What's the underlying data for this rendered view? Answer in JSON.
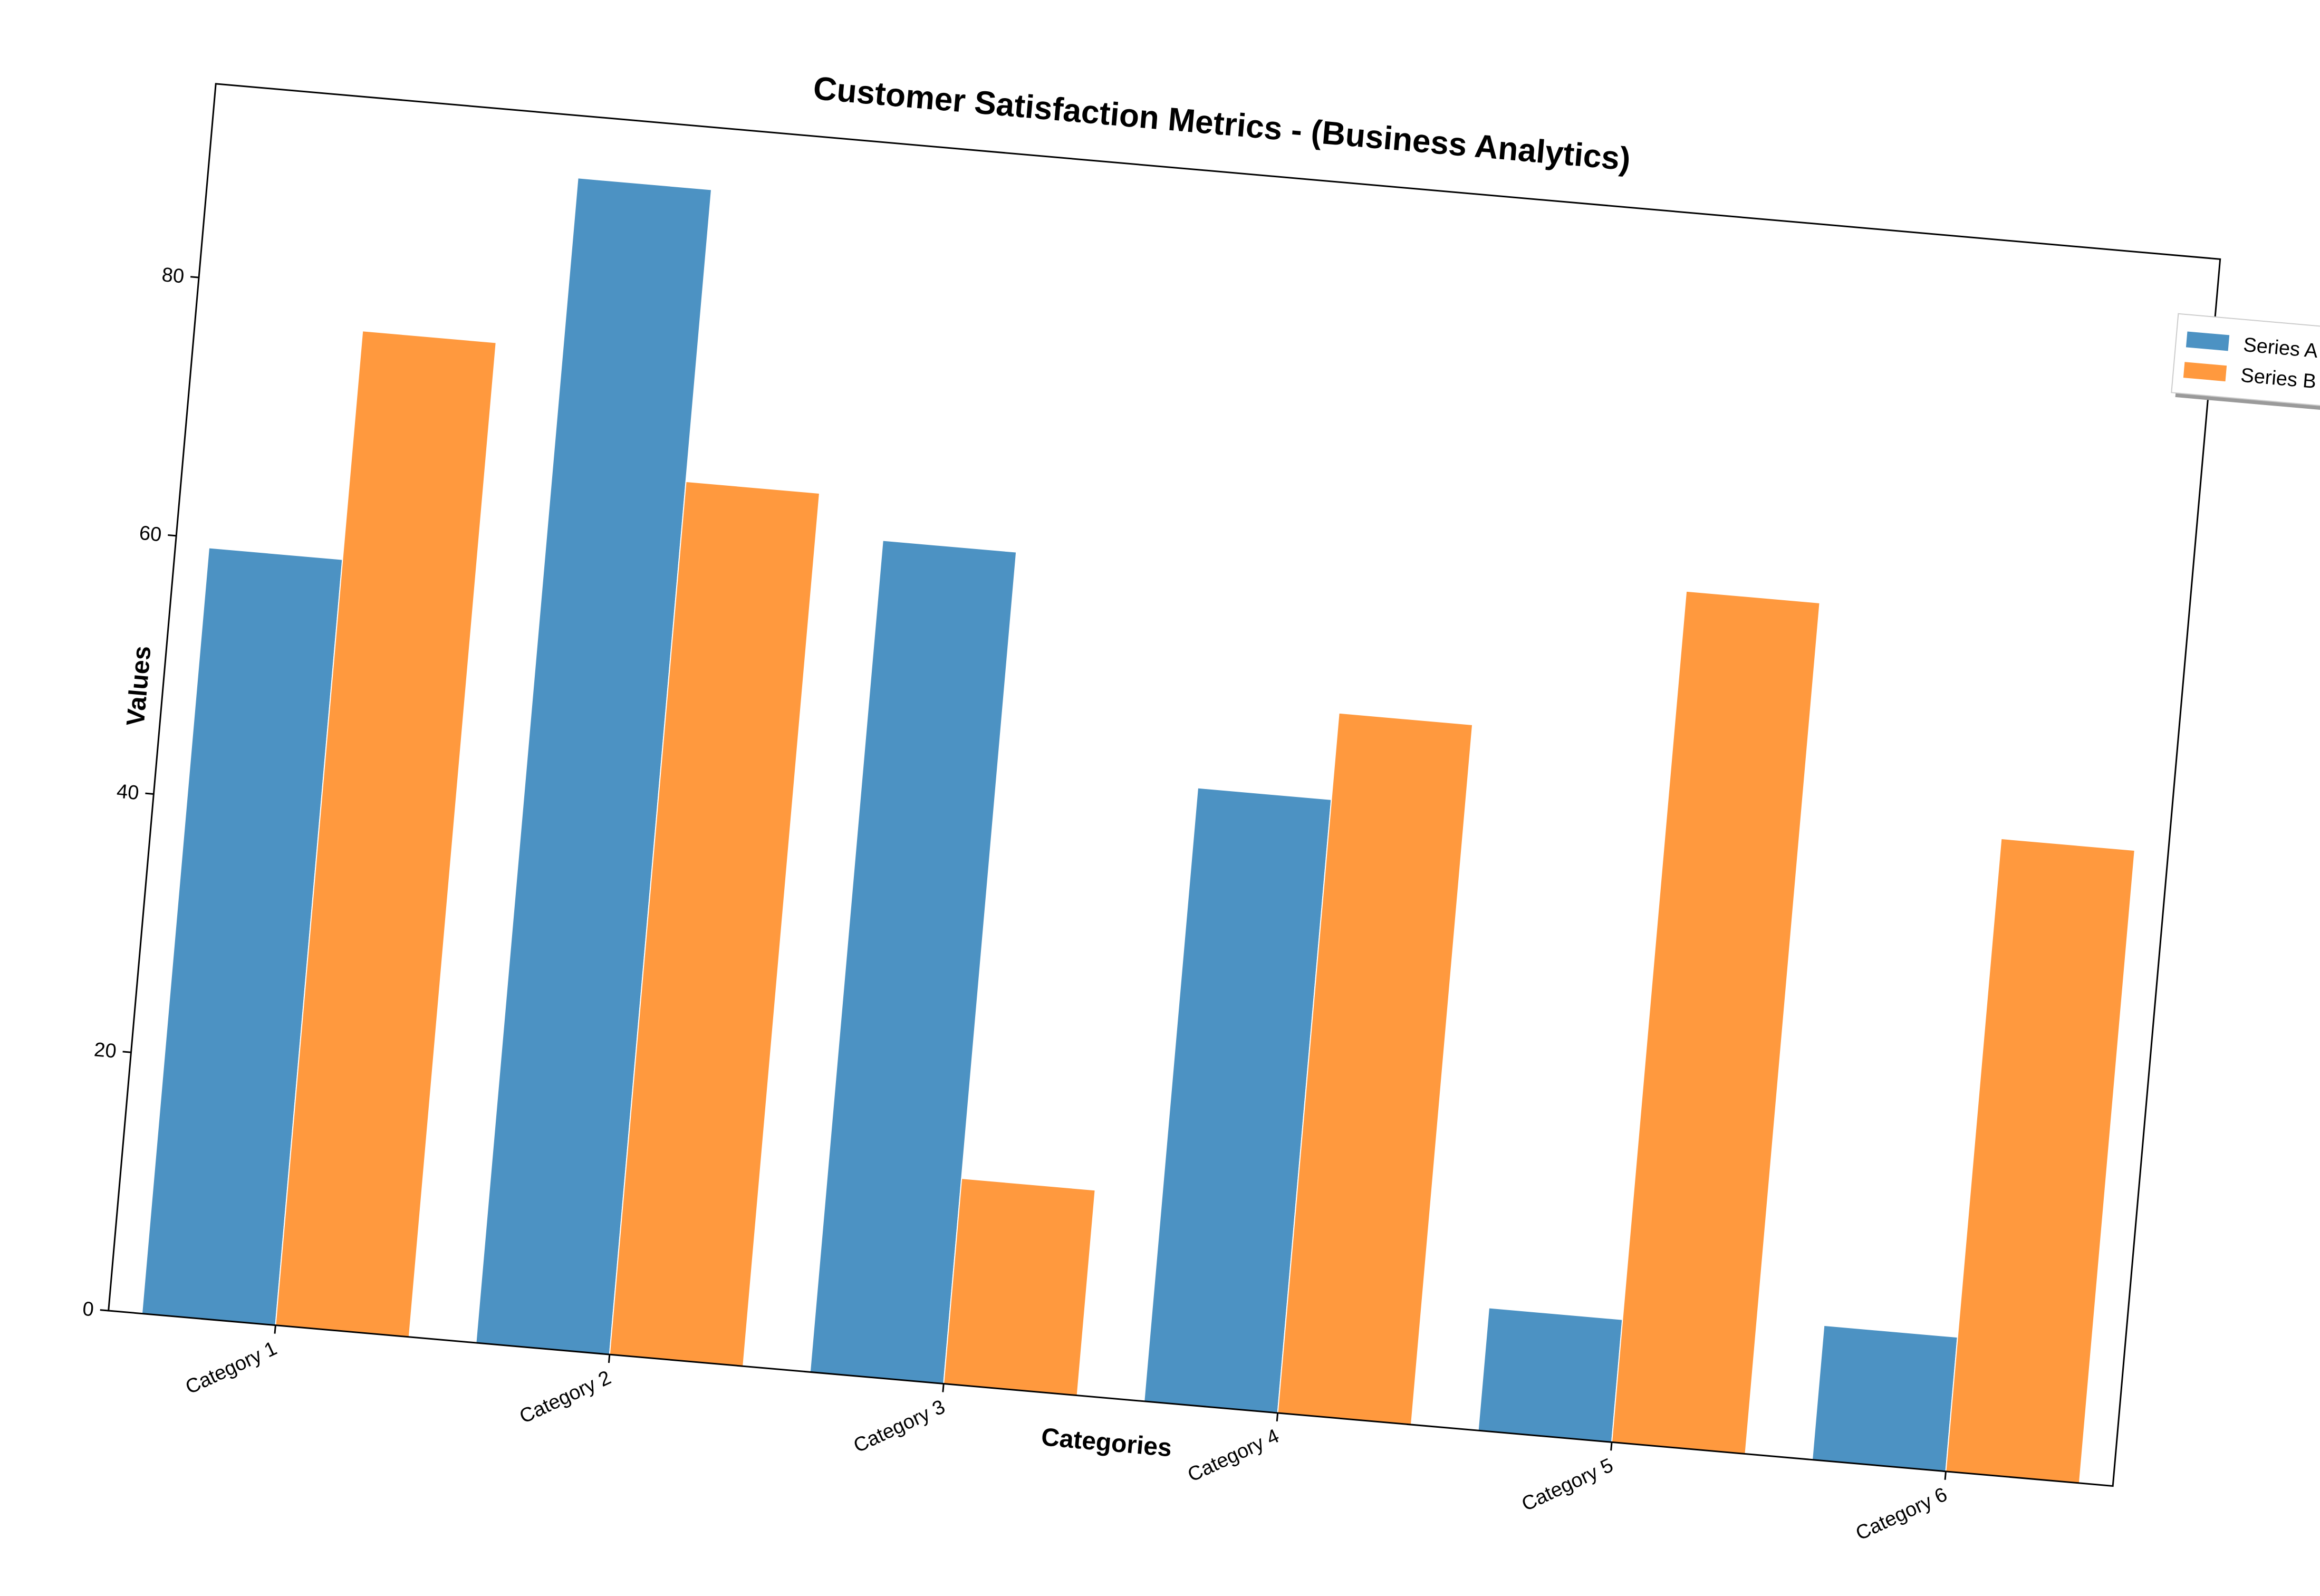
{
  "chart_data": {
    "type": "bar",
    "title": "Customer Satisfaction Metrics - (Business Analytics)",
    "xlabel": "Categories",
    "ylabel": "Values",
    "categories": [
      "Category 1",
      "Category 2",
      "Category 3",
      "Category 4",
      "Category 5",
      "Category 6"
    ],
    "series": [
      {
        "name": "Series A",
        "color": "#4c92c3",
        "values": [
          59.3,
          90.2,
          64.4,
          47.5,
          9.5,
          10.4
        ]
      },
      {
        "name": "Series B",
        "color": "#ff993e",
        "values": [
          77.0,
          67.6,
          15.9,
          54.2,
          65.9,
          49.0
        ]
      }
    ],
    "ylim": [
      0,
      95
    ],
    "yticks": [
      0,
      20,
      40,
      60,
      80
    ],
    "grid": false,
    "legend_position": "outside-top-right"
  }
}
